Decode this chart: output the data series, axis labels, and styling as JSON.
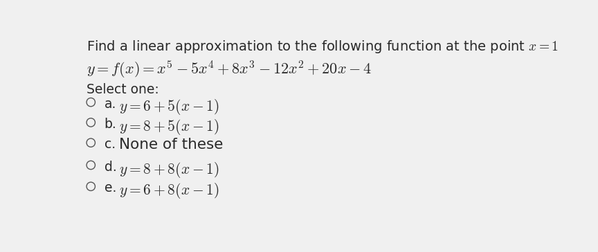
{
  "background_color": "#f0f0f0",
  "title_line": "Find a linear approximation to the following function at the point $x = 1$",
  "function_line": "$y = f(x) = x^5 - 5x^4 + 8x^3 - 12x^2 + 20x - 4$",
  "select_one": "Select one:",
  "options": [
    {
      "label": "a.",
      "formula": "$y = 6 + 5(x - 1)$"
    },
    {
      "label": "b.",
      "formula": "$y = 8 + 5(x - 1)$"
    },
    {
      "label": "c.",
      "formula": "None of these"
    },
    {
      "label": "d.",
      "formula": "$y = 8 + 8(x - 1)$"
    },
    {
      "label": "e.",
      "formula": "$y = 6 + 8(x - 1)$"
    }
  ],
  "text_color": "#2a2a2a",
  "circle_color": "#555555",
  "title_fontsize": 14,
  "function_fontsize": 16,
  "select_fontsize": 13.5,
  "option_fontsize": 15.5,
  "label_fontsize": 13.5
}
